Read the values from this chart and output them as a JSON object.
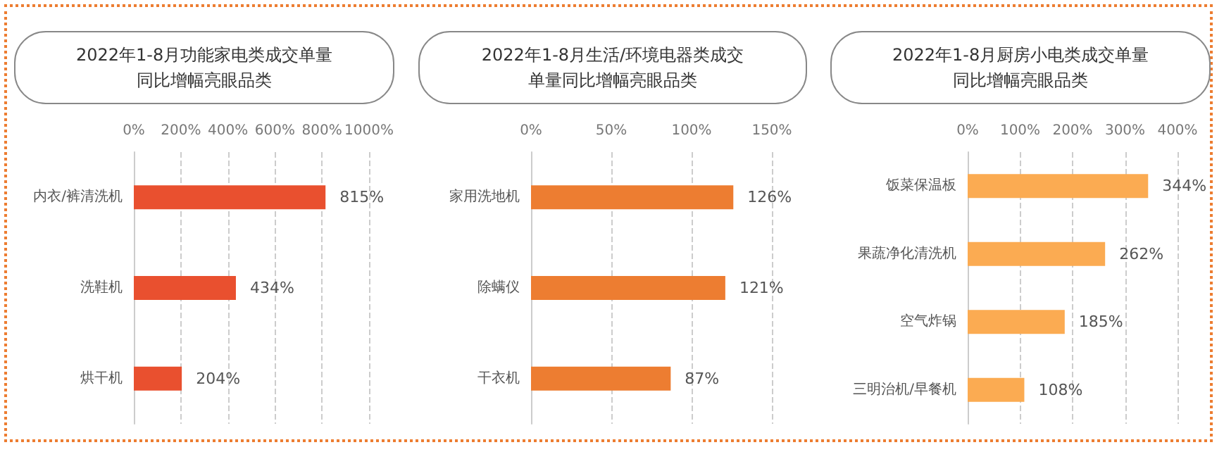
{
  "chart_data": [
    {
      "type": "bar",
      "orientation": "horizontal",
      "title": "2022年1-8月功能家电类成交单量同比增幅亮眼品类",
      "categories": [
        "内衣/裤清洗机",
        "洗鞋机",
        "烘干机"
      ],
      "values": [
        815,
        434,
        204
      ],
      "value_labels": [
        "815%",
        "434%",
        "204%"
      ],
      "color": "#e9502f",
      "xlim": [
        0,
        1000
      ],
      "xticks": [
        {
          "value": 0,
          "label": "0%"
        },
        {
          "value": 200,
          "label": "200%"
        },
        {
          "value": 400,
          "label": "400%"
        },
        {
          "value": 600,
          "label": "600%"
        },
        {
          "value": 800,
          "label": "800%"
        },
        {
          "value": 1000,
          "label": "1000%"
        }
      ],
      "grid": "x"
    },
    {
      "type": "bar",
      "orientation": "horizontal",
      "title": "2022年1-8月生活/环境电器类成交单量同比增幅亮眼品类",
      "categories": [
        "家用洗地机",
        "除螨仪",
        "干衣机"
      ],
      "values": [
        126,
        121,
        87
      ],
      "value_labels": [
        "126%",
        "121%",
        "87%"
      ],
      "color": "#ed7d31",
      "xlim": [
        0,
        150
      ],
      "xticks": [
        {
          "value": 0,
          "label": "0%"
        },
        {
          "value": 50,
          "label": "50%"
        },
        {
          "value": 100,
          "label": "100%"
        },
        {
          "value": 150,
          "label": "150%"
        }
      ],
      "grid": "x"
    },
    {
      "type": "bar",
      "orientation": "horizontal",
      "title": "2022年1-8月厨房小电类成交单量同比增幅亮眼品类",
      "categories": [
        "饭菜保温板",
        "果蔬净化清洗机",
        "空气炸锅",
        "三明治机/早餐机"
      ],
      "values": [
        344,
        262,
        185,
        108
      ],
      "value_labels": [
        "344%",
        "262%",
        "185%",
        "108%"
      ],
      "color": "#fbab52",
      "xlim": [
        0,
        400
      ],
      "xticks": [
        {
          "value": 0,
          "label": "0%"
        },
        {
          "value": 100,
          "label": "100%"
        },
        {
          "value": 200,
          "label": "200%"
        },
        {
          "value": 300,
          "label": "300%"
        },
        {
          "value": 400,
          "label": "400%"
        }
      ],
      "grid": "x"
    }
  ]
}
